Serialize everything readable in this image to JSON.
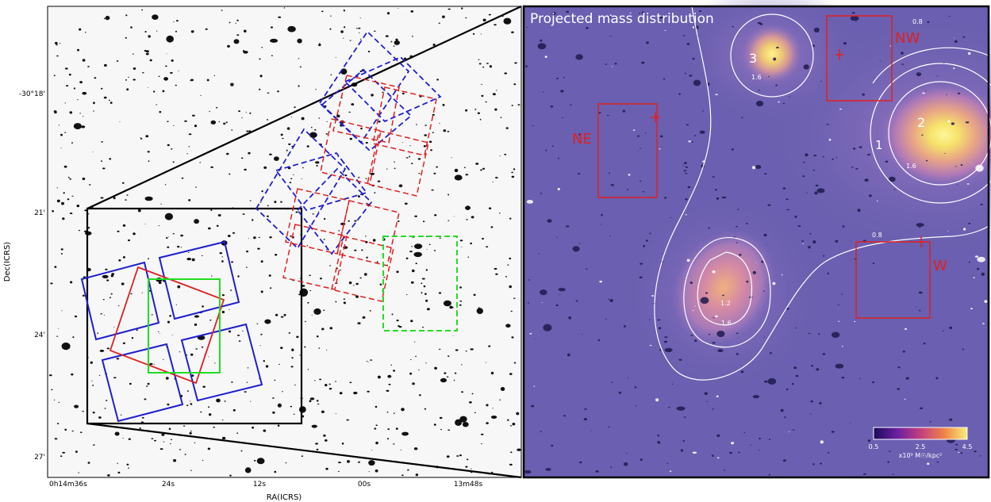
{
  "left_panel": {
    "y_axis_label": "Dec(ICRS)",
    "x_axis_label": "RA(ICRS)",
    "y_ticks": [
      "-30°18'",
      "21'",
      "24'",
      "27'"
    ],
    "x_ticks": [
      "0h14m36s",
      "24s",
      "12s",
      "00s",
      "13m48s"
    ]
  },
  "right_panel": {
    "title": "Projected mass distribution",
    "regions": [
      "NW",
      "NE",
      "W"
    ],
    "peak_labels": [
      "1",
      "2",
      "3"
    ],
    "contour_labels": [
      "0.8",
      "1.2",
      "1.6"
    ],
    "colorbar": {
      "tick_min": "0.5",
      "tick_mid": "2.5",
      "tick_max": "4.5",
      "unit": "x10⁹ M☉/kpc²"
    }
  },
  "colors": {
    "hst_pointing": "#1f1fd0",
    "red_pointing": "#e01f1f",
    "green_pointing": "#22dd22",
    "region_box": "#e02020",
    "mass_background": "#6a5fb0"
  }
}
